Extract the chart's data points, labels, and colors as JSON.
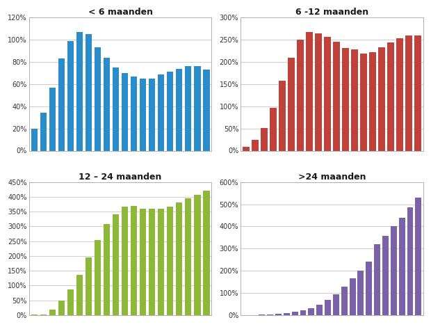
{
  "chart1": {
    "title": "< 6 maanden",
    "color": "#2b8ccc",
    "values": [
      20,
      34,
      57,
      83,
      99,
      107,
      105,
      93,
      84,
      75,
      70,
      67,
      65,
      65,
      69,
      71,
      74,
      76,
      76,
      73
    ],
    "ylim": [
      0,
      120
    ],
    "yticks": [
      0,
      20,
      40,
      60,
      80,
      100,
      120
    ]
  },
  "chart2": {
    "title": "6 -12 maanden",
    "color": "#c0413a",
    "values": [
      8,
      24,
      51,
      97,
      157,
      210,
      251,
      268,
      264,
      257,
      246,
      231,
      228,
      219,
      222,
      233,
      244,
      253,
      259,
      260
    ],
    "ylim": [
      0,
      300
    ],
    "yticks": [
      0,
      50,
      100,
      150,
      200,
      250,
      300
    ]
  },
  "chart3": {
    "title": "12 – 24 maanden",
    "color": "#8db83a",
    "values": [
      2,
      2,
      18,
      49,
      87,
      137,
      194,
      254,
      308,
      342,
      366,
      370,
      359,
      360,
      360,
      366,
      380,
      395,
      408,
      421
    ],
    "ylim": [
      0,
      450
    ],
    "yticks": [
      0,
      50,
      100,
      150,
      200,
      250,
      300,
      350,
      400,
      450
    ]
  },
  "chart4": {
    "title": ">24 maanden",
    "color": "#7b62a8",
    "values": [
      1,
      1,
      2,
      3,
      5,
      8,
      14,
      22,
      32,
      48,
      70,
      95,
      127,
      165,
      202,
      240,
      320,
      358,
      400,
      440,
      485,
      530
    ],
    "ylim": [
      0,
      600
    ],
    "yticks": [
      0,
      100,
      200,
      300,
      400,
      500,
      600
    ]
  },
  "background_color": "#ffffff",
  "grid_color": "#c8c8c8",
  "title_fontsize": 9,
  "tick_fontsize": 7,
  "bar_width": 0.75
}
